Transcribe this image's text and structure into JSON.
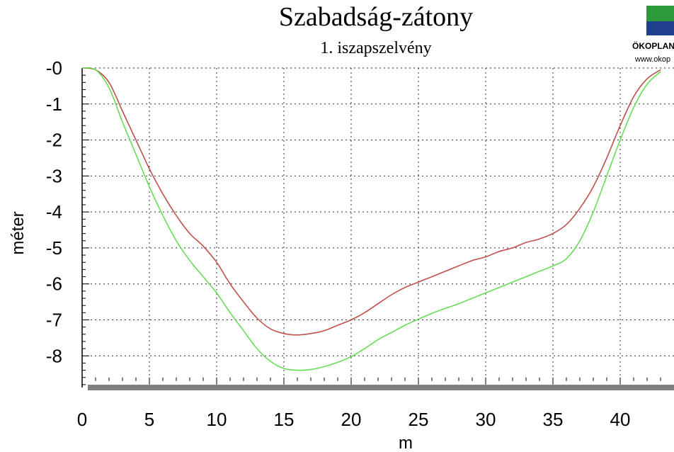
{
  "chart_data": {
    "type": "line",
    "title": "Szabadság-zátony",
    "subtitle": "1. iszapszelvény",
    "xlabel": "m",
    "ylabel": "méter",
    "xlim": [
      0,
      44
    ],
    "ylim": [
      -8.9,
      0
    ],
    "x_ticks": [
      0,
      5,
      10,
      15,
      20,
      25,
      30,
      35,
      40
    ],
    "x_tick_labels": [
      "0",
      "5",
      "10",
      "15",
      "20",
      "25",
      "30",
      "35",
      "40"
    ],
    "y_ticks": [
      0,
      -1,
      -2,
      -3,
      -4,
      -5,
      -6,
      -7,
      -8
    ],
    "y_tick_labels": [
      "-0",
      "-1",
      "-2",
      "-3",
      "-4",
      "-5",
      "-6",
      "-7",
      "-8"
    ],
    "grid": true,
    "series": [
      {
        "color": "#c0504d",
        "points": [
          [
            0,
            0
          ],
          [
            1,
            -0.05
          ],
          [
            2,
            -0.4
          ],
          [
            3,
            -1.2
          ],
          [
            4,
            -2.0
          ],
          [
            5,
            -2.8
          ],
          [
            6,
            -3.5
          ],
          [
            7,
            -4.1
          ],
          [
            8,
            -4.6
          ],
          [
            9,
            -4.95
          ],
          [
            10,
            -5.4
          ],
          [
            11,
            -6.0
          ],
          [
            12,
            -6.5
          ],
          [
            13,
            -6.95
          ],
          [
            14,
            -7.25
          ],
          [
            15,
            -7.38
          ],
          [
            16,
            -7.42
          ],
          [
            17,
            -7.38
          ],
          [
            18,
            -7.3
          ],
          [
            19,
            -7.15
          ],
          [
            20,
            -7.0
          ],
          [
            21,
            -6.8
          ],
          [
            22,
            -6.55
          ],
          [
            23,
            -6.3
          ],
          [
            24,
            -6.1
          ],
          [
            25,
            -5.95
          ],
          [
            26,
            -5.8
          ],
          [
            27,
            -5.65
          ],
          [
            28,
            -5.5
          ],
          [
            29,
            -5.35
          ],
          [
            30,
            -5.25
          ],
          [
            31,
            -5.1
          ],
          [
            32,
            -5.0
          ],
          [
            33,
            -4.85
          ],
          [
            34,
            -4.75
          ],
          [
            35,
            -4.6
          ],
          [
            36,
            -4.35
          ],
          [
            37,
            -3.9
          ],
          [
            38,
            -3.3
          ],
          [
            39,
            -2.5
          ],
          [
            40,
            -1.6
          ],
          [
            41,
            -0.8
          ],
          [
            42,
            -0.3
          ],
          [
            43,
            -0.05
          ]
        ]
      },
      {
        "color": "#66dd55",
        "points": [
          [
            0,
            0
          ],
          [
            1,
            -0.05
          ],
          [
            2,
            -0.55
          ],
          [
            3,
            -1.5
          ],
          [
            4,
            -2.4
          ],
          [
            5,
            -3.3
          ],
          [
            6,
            -4.1
          ],
          [
            7,
            -4.8
          ],
          [
            8,
            -5.35
          ],
          [
            9,
            -5.8
          ],
          [
            10,
            -6.25
          ],
          [
            11,
            -6.8
          ],
          [
            12,
            -7.3
          ],
          [
            13,
            -7.8
          ],
          [
            14,
            -8.15
          ],
          [
            15,
            -8.35
          ],
          [
            16,
            -8.4
          ],
          [
            17,
            -8.38
          ],
          [
            18,
            -8.3
          ],
          [
            19,
            -8.18
          ],
          [
            20,
            -8.02
          ],
          [
            21,
            -7.8
          ],
          [
            22,
            -7.55
          ],
          [
            23,
            -7.35
          ],
          [
            24,
            -7.15
          ],
          [
            25,
            -6.98
          ],
          [
            26,
            -6.82
          ],
          [
            27,
            -6.68
          ],
          [
            28,
            -6.55
          ],
          [
            29,
            -6.4
          ],
          [
            30,
            -6.25
          ],
          [
            31,
            -6.1
          ],
          [
            32,
            -5.95
          ],
          [
            33,
            -5.8
          ],
          [
            34,
            -5.65
          ],
          [
            35,
            -5.5
          ],
          [
            36,
            -5.3
          ],
          [
            37,
            -4.8
          ],
          [
            38,
            -4.0
          ],
          [
            39,
            -3.0
          ],
          [
            40,
            -2.0
          ],
          [
            41,
            -1.1
          ],
          [
            42,
            -0.45
          ],
          [
            43,
            -0.1
          ]
        ]
      }
    ]
  },
  "logo": {
    "name": "ÖKOPLAN",
    "url": "www.okop"
  },
  "colors": {
    "grid": "#303030",
    "baseline_bar": "#808080",
    "axis": "#000000",
    "logo_green": "#2e9b3a",
    "logo_blue": "#1f3f8f"
  }
}
